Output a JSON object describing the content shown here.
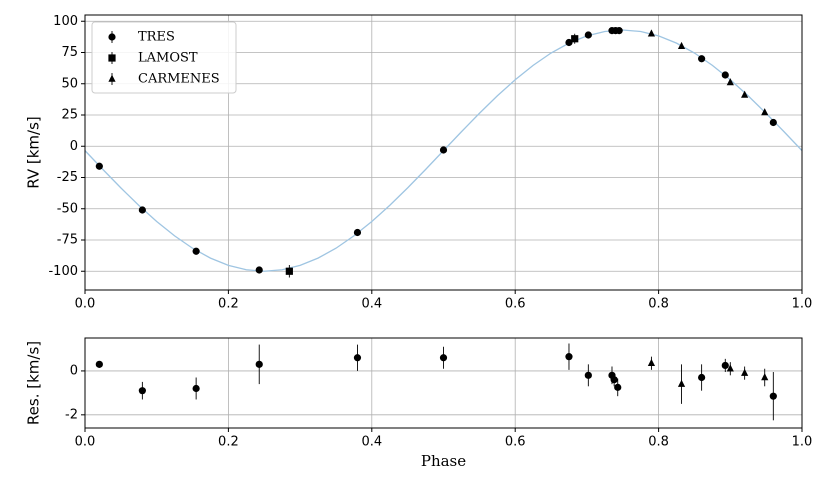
{
  "chart_data": [
    {
      "type": "scatter",
      "ylabel": "RV [km/s]",
      "xlim": [
        0,
        1
      ],
      "ylim": [
        -115,
        105
      ],
      "xticks": [
        {
          "value": 0,
          "label": "0.0"
        },
        {
          "value": 0.2,
          "label": "0.2"
        },
        {
          "value": 0.4,
          "label": "0.4"
        },
        {
          "value": 0.6,
          "label": "0.6"
        },
        {
          "value": 0.8,
          "label": "0.8"
        },
        {
          "value": 1,
          "label": "1.0"
        }
      ],
      "yticks": [
        -100,
        -75,
        -50,
        -25,
        0,
        25,
        50,
        75,
        100
      ],
      "grid": true,
      "legend": "upper left",
      "model": {
        "color": "#9fc5e2",
        "x": [
          0,
          0.025,
          0.05,
          0.075,
          0.1,
          0.125,
          0.15,
          0.175,
          0.2,
          0.225,
          0.25,
          0.275,
          0.3,
          0.325,
          0.35,
          0.375,
          0.4,
          0.425,
          0.45,
          0.475,
          0.5,
          0.525,
          0.55,
          0.575,
          0.6,
          0.625,
          0.65,
          0.675,
          0.7,
          0.725,
          0.75,
          0.775,
          0.8,
          0.825,
          0.85,
          0.875,
          0.9,
          0.925,
          0.95,
          0.975,
          1
        ],
        "values": [
          -3.5,
          -18.6,
          -33.3,
          -47.3,
          -60.2,
          -71.7,
          -81.6,
          -89.5,
          -95.3,
          -98.8,
          -100,
          -98.8,
          -95.3,
          -89.5,
          -81.6,
          -71.7,
          -60.2,
          -47.3,
          -33.3,
          -18.6,
          -3.5,
          11.6,
          26.3,
          40.3,
          53.2,
          64.7,
          74.6,
          82.5,
          88.3,
          91.8,
          93,
          91.8,
          88.3,
          82.5,
          74.6,
          64.7,
          53.2,
          40.3,
          26.3,
          11.6,
          -3.5
        ]
      },
      "series": [
        {
          "name": "TRES",
          "marker": "circle",
          "color": "#000000",
          "x": [
            0.02,
            0.08,
            0.155,
            0.243,
            0.38,
            0.5,
            0.675,
            0.702,
            0.735,
            0.74,
            0.745,
            0.86,
            0.893,
            0.96
          ],
          "values": [
            -16,
            -51,
            -84,
            -99,
            -69,
            -3,
            83,
            89,
            92.5,
            92.5,
            92.5,
            70,
            57,
            19
          ]
        },
        {
          "name": "LAMOST",
          "marker": "square",
          "color": "#000000",
          "x": [
            0.285,
            0.683
          ],
          "values": [
            -100,
            86
          ],
          "errors": [
            5,
            4
          ]
        },
        {
          "name": "CARMENES",
          "marker": "triangle",
          "color": "#000000",
          "x": [
            0.79,
            0.832,
            0.9,
            0.92,
            0.948
          ],
          "values": [
            90,
            80,
            51,
            41,
            27
          ]
        }
      ]
    },
    {
      "type": "scatter",
      "xlabel": "Phase",
      "ylabel": "Res. [km/s]",
      "xlim": [
        0,
        1
      ],
      "ylim": [
        -2.6,
        1.5
      ],
      "xticks": [
        {
          "value": 0,
          "label": "0.0"
        },
        {
          "value": 0.2,
          "label": "0.2"
        },
        {
          "value": 0.4,
          "label": "0.4"
        },
        {
          "value": 0.6,
          "label": "0.6"
        },
        {
          "value": 0.8,
          "label": "0.8"
        },
        {
          "value": 1,
          "label": "1.0"
        }
      ],
      "yticks": [
        -2,
        0
      ],
      "grid": true,
      "series": [
        {
          "marker": "circle",
          "color": "#000000",
          "x": [
            0.02,
            0.08,
            0.155,
            0.243,
            0.38,
            0.5,
            0.675,
            0.702,
            0.735,
            0.738,
            0.743,
            0.86,
            0.893,
            0.96
          ],
          "values": [
            0.3,
            -0.9,
            -0.8,
            0.3,
            0.6,
            0.6,
            0.65,
            -0.2,
            -0.2,
            -0.4,
            -0.75,
            -0.3,
            0.25,
            -1.15
          ],
          "errors": [
            0.05,
            0.4,
            0.5,
            0.9,
            0.6,
            0.5,
            0.6,
            0.5,
            0.4,
            0.3,
            0.4,
            0.6,
            0.3,
            1.1
          ]
        },
        {
          "marker": "triangle",
          "color": "#000000",
          "x": [
            0.79,
            0.832,
            0.9,
            0.92,
            0.948
          ],
          "values": [
            0.35,
            -0.6,
            0.1,
            -0.1,
            -0.3
          ],
          "errors": [
            0.3,
            0.9,
            0.3,
            0.3,
            0.4
          ]
        }
      ]
    }
  ]
}
